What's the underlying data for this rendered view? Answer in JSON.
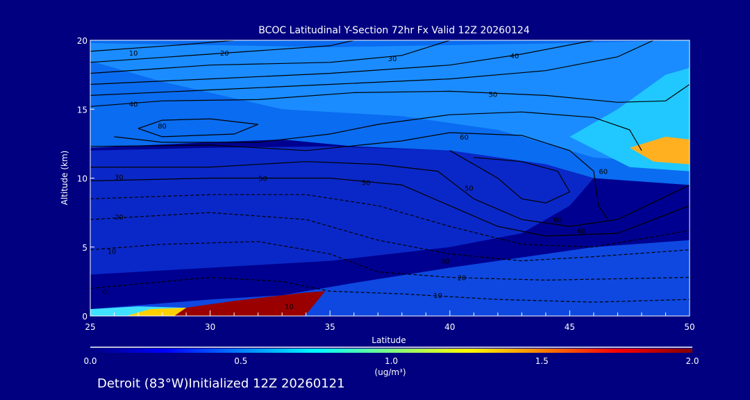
{
  "chart_data": {
    "type": "heatmap",
    "title": "BCOC Latitudinal Y-Section 72hr  Fx Valid 12Z 20260124",
    "xlabel": "Latitude",
    "ylabel": "Altitude (km)",
    "xlim": [
      25,
      50
    ],
    "ylim": [
      0,
      20
    ],
    "xticks": [
      25,
      30,
      35,
      40,
      45,
      50
    ],
    "yticks": [
      0,
      5,
      10,
      15,
      20
    ],
    "colorbar": {
      "label": "(ug/m³)",
      "range": [
        0.0,
        2.0
      ],
      "ticks": [
        "0.0",
        "0.5",
        "1.0",
        "1.5",
        "2.0"
      ],
      "colors": [
        "#000080",
        "#0000ff",
        "#0080ff",
        "#00ffff",
        "#80ff80",
        "#ffff00",
        "#ff8000",
        "#ff0000",
        "#800000"
      ]
    },
    "shaded_regions": [
      {
        "value": 0.45,
        "color": "#0a6cf0",
        "points": [
          [
            25,
            12.2
          ],
          [
            30,
            12.6
          ],
          [
            33,
            12.8
          ],
          [
            36,
            12.3
          ],
          [
            40,
            12.0
          ],
          [
            44,
            11.0
          ],
          [
            46,
            10.0
          ],
          [
            50,
            9.5
          ],
          [
            50,
            20
          ],
          [
            25,
            20
          ]
        ]
      },
      {
        "value": 0.55,
        "color": "#1a8cff",
        "points": [
          [
            25,
            19.8
          ],
          [
            35,
            19.5
          ],
          [
            45,
            19.8
          ],
          [
            50,
            20
          ],
          [
            50,
            11
          ],
          [
            46,
            11.5
          ],
          [
            42,
            13.5
          ],
          [
            38,
            14.5
          ],
          [
            33,
            15
          ],
          [
            28,
            17
          ],
          [
            25,
            18.5
          ]
        ]
      },
      {
        "value": 0.75,
        "color": "#20c8ff",
        "points": [
          [
            45,
            13
          ],
          [
            47,
            15
          ],
          [
            49,
            17.5
          ],
          [
            50,
            18
          ],
          [
            50,
            10.5
          ],
          [
            47.5,
            10.8
          ]
        ]
      },
      {
        "value": 1.5,
        "color": "#ffb020",
        "points": [
          [
            47.5,
            12.2
          ],
          [
            49,
            13
          ],
          [
            50,
            12.8
          ],
          [
            50,
            11
          ],
          [
            48.5,
            11.2
          ]
        ]
      },
      {
        "value": 0.25,
        "color": "#0a28c8",
        "points": [
          [
            25,
            3
          ],
          [
            30,
            3.5
          ],
          [
            35,
            4
          ],
          [
            40,
            5
          ],
          [
            43,
            6
          ],
          [
            45,
            8
          ],
          [
            46,
            10
          ],
          [
            44,
            11
          ],
          [
            40,
            12
          ],
          [
            35,
            12.3
          ],
          [
            30,
            12.2
          ],
          [
            25,
            12
          ]
        ]
      },
      {
        "value": 0.35,
        "color": "#0e48e0",
        "points": [
          [
            33,
            1.5
          ],
          [
            36,
            2.4
          ],
          [
            40,
            3.5
          ],
          [
            44,
            4.5
          ],
          [
            46,
            5
          ],
          [
            50,
            5.5
          ],
          [
            50,
            0
          ],
          [
            25,
            0
          ],
          [
            25,
            0.5
          ],
          [
            30,
            1.2
          ]
        ]
      },
      {
        "value": 2.0,
        "color": "#9a0000",
        "points": [
          [
            28.5,
            0
          ],
          [
            29,
            0.6
          ],
          [
            31,
            1.1
          ],
          [
            34,
            1.7
          ],
          [
            34.8,
            1.8
          ],
          [
            34,
            0.1
          ],
          [
            33.8,
            0
          ]
        ]
      },
      {
        "value": 0.9,
        "color": "#40e0ff",
        "points": [
          [
            25,
            0
          ],
          [
            25,
            0.5
          ],
          [
            27,
            0.7
          ],
          [
            29,
            0.6
          ],
          [
            28.5,
            0
          ]
        ]
      },
      {
        "value": 1.3,
        "color": "#ffd000",
        "points": [
          [
            26.5,
            0
          ],
          [
            27.5,
            0.5
          ],
          [
            29,
            0.6
          ],
          [
            28.5,
            0
          ]
        ]
      }
    ],
    "contour_labels": [
      {
        "text": "10",
        "at": [
          26.8,
          19.1
        ]
      },
      {
        "text": "20",
        "at": [
          30.6,
          19.1
        ]
      },
      {
        "text": "30",
        "at": [
          37.6,
          18.7
        ]
      },
      {
        "text": "40",
        "at": [
          42.7,
          18.9
        ]
      },
      {
        "text": "40",
        "at": [
          26.8,
          15.4
        ]
      },
      {
        "text": "80",
        "at": [
          28.0,
          13.8
        ]
      },
      {
        "text": "50",
        "at": [
          41.8,
          16.1
        ]
      },
      {
        "text": "60",
        "at": [
          40.6,
          13.0
        ]
      },
      {
        "text": "60",
        "at": [
          46.4,
          10.5
        ]
      },
      {
        "text": "30",
        "at": [
          26.2,
          10.1
        ]
      },
      {
        "text": "50",
        "at": [
          32.2,
          10.0
        ]
      },
      {
        "text": "50",
        "at": [
          36.5,
          9.7
        ]
      },
      {
        "text": "50",
        "at": [
          40.8,
          9.3
        ]
      },
      {
        "text": "60",
        "at": [
          44.5,
          7.0
        ]
      },
      {
        "text": "60",
        "at": [
          45.5,
          6.2
        ]
      },
      {
        "text": "20",
        "at": [
          26.2,
          7.2
        ]
      },
      {
        "text": "10",
        "at": [
          25.9,
          4.7
        ]
      },
      {
        "text": "30",
        "at": [
          39.8,
          4.0
        ]
      },
      {
        "text": "20",
        "at": [
          40.5,
          2.8
        ]
      },
      {
        "text": "10",
        "at": [
          39.5,
          1.5
        ]
      },
      {
        "text": "10",
        "at": [
          33.3,
          0.7
        ]
      },
      {
        "text": "0",
        "at": [
          25.6,
          1.8
        ]
      }
    ],
    "contours": [
      [
        [
          25,
          19.2
        ],
        [
          29,
          19.7
        ],
        [
          31,
          20
        ]
      ],
      [
        [
          25,
          18.4
        ],
        [
          30,
          19.0
        ],
        [
          35,
          19.6
        ],
        [
          36,
          20
        ]
      ],
      [
        [
          25,
          17.6
        ],
        [
          30,
          18.2
        ],
        [
          35,
          18.4
        ],
        [
          38,
          18.9
        ],
        [
          40,
          20
        ]
      ],
      [
        [
          25,
          16.8
        ],
        [
          30,
          17.2
        ],
        [
          35,
          17.6
        ],
        [
          40,
          18.2
        ],
        [
          43,
          19
        ],
        [
          46,
          20
        ]
      ],
      [
        [
          25,
          16.0
        ],
        [
          30,
          16.4
        ],
        [
          35,
          16.8
        ],
        [
          40,
          17.2
        ],
        [
          44,
          17.8
        ],
        [
          47,
          18.8
        ],
        [
          48.5,
          20
        ]
      ],
      [
        [
          25,
          15.2
        ],
        [
          28,
          15.6
        ],
        [
          32,
          15.7
        ],
        [
          36,
          16.2
        ],
        [
          40,
          16.3
        ],
        [
          44,
          16.0
        ],
        [
          47,
          15.5
        ],
        [
          49,
          15.6
        ],
        [
          50,
          16.8
        ]
      ],
      [
        [
          27,
          13.6
        ],
        [
          28,
          14.2
        ],
        [
          30,
          14.3
        ],
        [
          32,
          13.9
        ],
        [
          31,
          13.2
        ],
        [
          28,
          13.0
        ],
        [
          27,
          13.6
        ]
      ],
      [
        [
          26,
          13.0
        ],
        [
          28,
          12.6
        ],
        [
          32,
          12.6
        ],
        [
          35,
          13.2
        ],
        [
          37,
          13.9
        ],
        [
          40,
          14.6
        ],
        [
          43,
          14.8
        ],
        [
          46,
          14.4
        ],
        [
          47.5,
          13.5
        ],
        [
          48,
          12
        ]
      ],
      [
        [
          25,
          12.3
        ],
        [
          30,
          12.4
        ],
        [
          34,
          12.0
        ],
        [
          38,
          12.7
        ],
        [
          40,
          13.3
        ],
        [
          43,
          13.1
        ],
        [
          45,
          12.0
        ],
        [
          46,
          10.5
        ],
        [
          46.2,
          8
        ],
        [
          46.6,
          7
        ]
      ],
      [
        [
          40,
          12.0
        ],
        [
          42,
          10.0
        ],
        [
          43,
          8.5
        ],
        [
          44,
          8.2
        ],
        [
          45,
          9
        ],
        [
          44.5,
          10.5
        ],
        [
          43,
          11.2
        ],
        [
          41,
          11.5
        ]
      ],
      [
        [
          25,
          10.8
        ],
        [
          30,
          10.8
        ],
        [
          34,
          11.2
        ],
        [
          37,
          11.0
        ],
        [
          39.5,
          10.5
        ],
        [
          41,
          8.5
        ],
        [
          43,
          7
        ],
        [
          45,
          6.5
        ],
        [
          47,
          7
        ],
        [
          50,
          9.5
        ]
      ],
      [
        [
          25,
          9.8
        ],
        [
          30,
          10.0
        ],
        [
          35,
          10.0
        ],
        [
          38,
          9.5
        ],
        [
          40,
          8.0
        ],
        [
          42,
          6.5
        ],
        [
          44,
          5.8
        ],
        [
          47,
          6
        ],
        [
          50,
          8
        ]
      ],
      [
        [
          25,
          8.5
        ],
        [
          30,
          8.8
        ],
        [
          34,
          8.8
        ],
        [
          37,
          8
        ],
        [
          40,
          6.5
        ],
        [
          43,
          5.2
        ],
        [
          46,
          5
        ],
        [
          50,
          6.2
        ]
      ],
      [
        [
          25,
          7.0
        ],
        [
          30,
          7.5
        ],
        [
          34,
          7.0
        ],
        [
          37,
          5.5
        ],
        [
          40,
          4.5
        ],
        [
          43,
          4.0
        ],
        [
          46,
          4.3
        ],
        [
          50,
          4.8
        ]
      ],
      [
        [
          25,
          4.8
        ],
        [
          28,
          5.2
        ],
        [
          32,
          5.4
        ],
        [
          35,
          4.5
        ],
        [
          37,
          3.2
        ],
        [
          40,
          2.8
        ],
        [
          44,
          2.6
        ],
        [
          50,
          2.8
        ]
      ],
      [
        [
          25,
          2.0
        ],
        [
          30,
          2.8
        ],
        [
          33,
          2.5
        ],
        [
          35,
          1.8
        ],
        [
          38,
          1.6
        ],
        [
          42,
          1.2
        ],
        [
          46,
          1.0
        ],
        [
          50,
          1.2
        ]
      ]
    ]
  },
  "footer": "Detroit (83°W)Initialized 12Z 20260121"
}
